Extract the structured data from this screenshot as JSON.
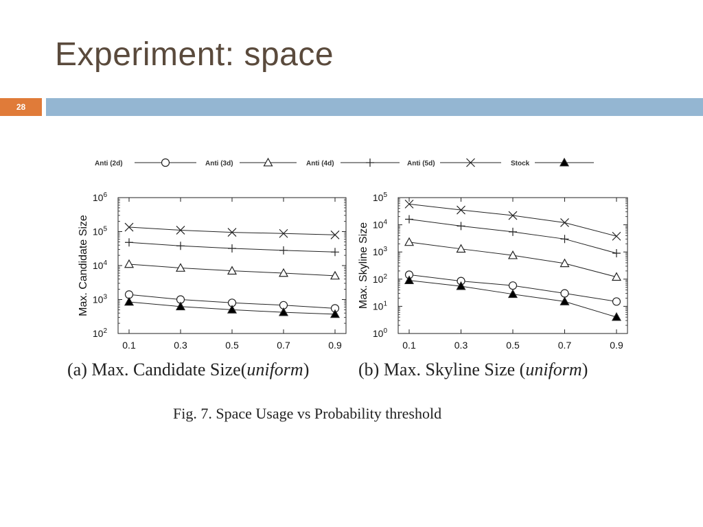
{
  "slide": {
    "title": "Experiment: space",
    "page_number": "28",
    "accent_color": "#e07b39",
    "bar_color": "#94b6d2"
  },
  "legend": [
    {
      "name": "Anti (2d)",
      "marker": "circle"
    },
    {
      "name": "Anti (3d)",
      "marker": "triangle"
    },
    {
      "name": "Anti (4d)",
      "marker": "plus"
    },
    {
      "name": "Anti (5d)",
      "marker": "cross"
    },
    {
      "name": "Stock",
      "marker": "filled-triangle"
    }
  ],
  "captions": {
    "a_prefix": "(a) Max. Candidate Size(",
    "a_italic": "uniform",
    "a_suffix": ")",
    "b_prefix": "(b) Max. Skyline Size (",
    "b_italic": "uniform",
    "b_suffix": ")",
    "figure": "Fig. 7.    Space Usage vs Probability threshold"
  },
  "chart_data": [
    {
      "type": "line",
      "ylabel": "Max. Candidate Size",
      "xlabel": "",
      "x": [
        0.1,
        0.3,
        0.5,
        0.7,
        0.9
      ],
      "x_tick_labels": [
        "0.1",
        "0.3",
        "0.5",
        "0.7",
        "0.9"
      ],
      "y_scale": "log",
      "ylim": [
        100,
        1000000
      ],
      "y_tick_exponents": [
        2,
        3,
        4,
        5,
        6
      ],
      "grid": false,
      "series": [
        {
          "name": "Anti (2d)",
          "marker": "circle",
          "values": [
            1400,
            1000,
            800,
            680,
            550
          ]
        },
        {
          "name": "Anti (3d)",
          "marker": "triangle",
          "values": [
            11000,
            8500,
            7000,
            6000,
            5000
          ]
        },
        {
          "name": "Anti (4d)",
          "marker": "plus",
          "values": [
            48000,
            38000,
            32000,
            28000,
            25000
          ]
        },
        {
          "name": "Anti (5d)",
          "marker": "cross",
          "values": [
            135000,
            110000,
            95000,
            88000,
            80000
          ]
        },
        {
          "name": "Stock",
          "marker": "filled-triangle",
          "values": [
            850,
            620,
            500,
            420,
            370
          ]
        }
      ]
    },
    {
      "type": "line",
      "ylabel": "Max. Skyline Size",
      "xlabel": "",
      "x": [
        0.1,
        0.3,
        0.5,
        0.7,
        0.9
      ],
      "x_tick_labels": [
        "0.1",
        "0.3",
        "0.5",
        "0.7",
        "0.9"
      ],
      "y_scale": "log",
      "ylim": [
        1,
        100000
      ],
      "y_tick_exponents": [
        0,
        1,
        2,
        3,
        4,
        5
      ],
      "grid": false,
      "series": [
        {
          "name": "Anti (2d)",
          "marker": "circle",
          "values": [
            145,
            85,
            58,
            30,
            15
          ]
        },
        {
          "name": "Anti (3d)",
          "marker": "triangle",
          "values": [
            2300,
            1300,
            750,
            380,
            120
          ]
        },
        {
          "name": "Anti (4d)",
          "marker": "plus",
          "values": [
            16000,
            9000,
            5500,
            3000,
            900
          ]
        },
        {
          "name": "Anti (5d)",
          "marker": "cross",
          "values": [
            58000,
            35000,
            22000,
            12000,
            3800
          ]
        },
        {
          "name": "Stock",
          "marker": "filled-triangle",
          "values": [
            90,
            55,
            28,
            15,
            4
          ]
        }
      ]
    }
  ]
}
